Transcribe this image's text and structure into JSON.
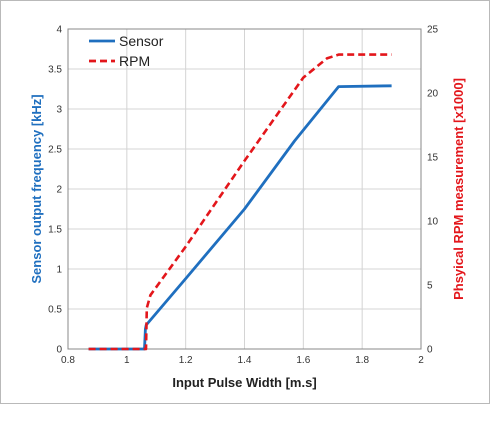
{
  "chart_data": {
    "type": "line",
    "xlabel": "Input Pulse Width [m.s]",
    "ylabel_left": "Sensor output frequency [kHz]",
    "ylabel_right": "Phsyical RPM measurement [x1000]",
    "xlim": [
      0.8,
      2
    ],
    "ylim_left": [
      0,
      4
    ],
    "ylim_right": [
      0,
      25
    ],
    "x_ticks": [
      "0.8",
      "1",
      "1.2",
      "1.4",
      "1.6",
      "1.8",
      "2"
    ],
    "y_left_ticks": [
      "0",
      "0.5",
      "1",
      "1.5",
      "2",
      "2.5",
      "3",
      "3.5",
      "4"
    ],
    "y_right_ticks": [
      "0",
      "5",
      "10",
      "15",
      "20",
      "25"
    ],
    "grid": "vertical and horizontal",
    "legend_position": "top-left",
    "series": [
      {
        "name": "Sensor",
        "axis": "left",
        "color": "#1f6fbf",
        "style": "solid",
        "x": [
          0.87,
          1.06,
          1.063,
          1.066,
          1.2,
          1.4,
          1.57,
          1.72,
          1.9
        ],
        "y": [
          0.0,
          0.0,
          0.25,
          0.3,
          0.88,
          1.75,
          2.6,
          3.28,
          3.29
        ]
      },
      {
        "name": "RPM",
        "axis": "right",
        "color": "#e3161b",
        "style": "dashed",
        "x": [
          0.87,
          1.065,
          1.068,
          1.08,
          1.2,
          1.4,
          1.6,
          1.68,
          1.72,
          1.9
        ],
        "y": [
          0.0,
          0.0,
          3.2,
          4.2,
          8.0,
          14.7,
          21.2,
          22.7,
          23.0,
          23.0
        ]
      }
    ]
  }
}
